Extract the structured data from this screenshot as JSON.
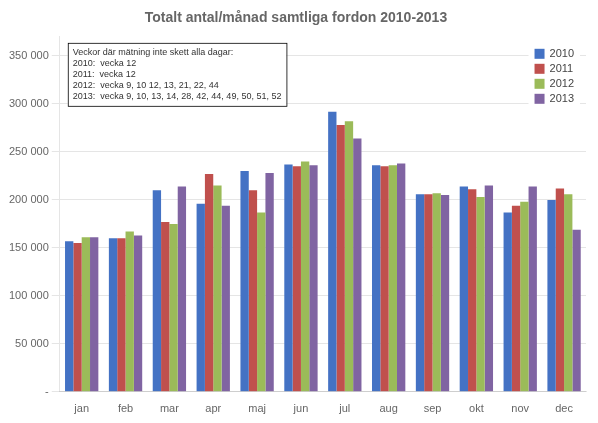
{
  "chart_data": {
    "type": "bar",
    "title": "Totalt antal/månad samtliga fordon 2010-2013",
    "categories": [
      "jan",
      "feb",
      "mar",
      "apr",
      "maj",
      "jun",
      "jul",
      "aug",
      "sep",
      "okt",
      "nov",
      "dec"
    ],
    "series": [
      {
        "name": "2010",
        "color": "#4472C4",
        "values": [
          157000,
          160000,
          210000,
          196000,
          230000,
          237000,
          292000,
          236000,
          206000,
          214000,
          187000,
          200000
        ]
      },
      {
        "name": "2011",
        "color": "#C0504D",
        "values": [
          155000,
          160000,
          177000,
          227000,
          210000,
          235000,
          278000,
          235000,
          206000,
          211000,
          194000,
          212000
        ]
      },
      {
        "name": "2012",
        "color": "#9BBB59",
        "values": [
          161000,
          167000,
          175000,
          215000,
          187000,
          240000,
          282000,
          236000,
          207000,
          203000,
          198000,
          206000
        ]
      },
      {
        "name": "2013",
        "color": "#8064A2",
        "values": [
          161000,
          163000,
          214000,
          194000,
          228000,
          236000,
          264000,
          238000,
          205000,
          215000,
          214000,
          169000
        ]
      }
    ],
    "ylim": [
      0,
      370000
    ],
    "yticks": [
      {
        "value": 0,
        "label": "-"
      },
      {
        "value": 50000,
        "label": "50 000"
      },
      {
        "value": 100000,
        "label": "100 000"
      },
      {
        "value": 150000,
        "label": "150 000"
      },
      {
        "value": 200000,
        "label": "200 000"
      },
      {
        "value": 250000,
        "label": "250 000"
      },
      {
        "value": 300000,
        "label": "300 000"
      },
      {
        "value": 350000,
        "label": "350 000"
      }
    ],
    "annotations": [
      "Veckor där mätning inte skett alla dagar:",
      "2010:  vecka 12",
      "2011:  vecka 12",
      "2012:  vecka 9, 10 12, 13, 21, 22, 44",
      "2013:  vecka 9, 10, 13, 14, 28, 42, 44, 49, 50, 51, 52"
    ],
    "grid": true,
    "legend": "upper right"
  }
}
